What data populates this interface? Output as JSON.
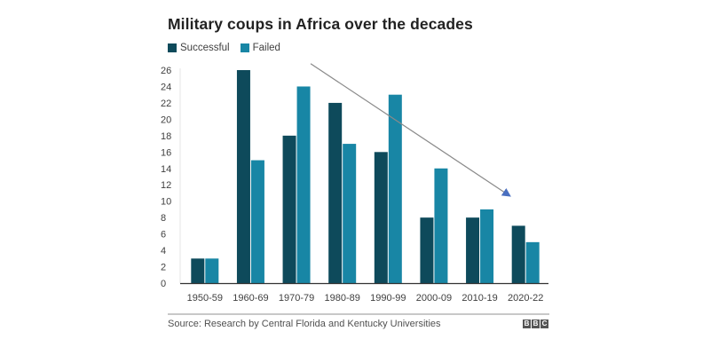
{
  "chart_data": {
    "type": "bar",
    "title": "Military coups in Africa over the decades",
    "xlabel": "",
    "ylabel": "",
    "categories": [
      "1950-59",
      "1960-69",
      "1970-79",
      "1980-89",
      "1990-99",
      "2000-09",
      "2010-19",
      "2020-22"
    ],
    "series": [
      {
        "name": "Successful",
        "color": "#0e4a5b",
        "values": [
          3,
          26,
          18,
          22,
          16,
          8,
          8,
          7
        ]
      },
      {
        "name": "Failed",
        "color": "#1886a5",
        "values": [
          3,
          15,
          24,
          17,
          23,
          14,
          9,
          5
        ]
      }
    ],
    "ylim": [
      0,
      26
    ],
    "yticks": [
      0,
      2,
      4,
      6,
      8,
      10,
      12,
      14,
      16,
      18,
      20,
      22,
      24,
      26
    ],
    "grid": false,
    "legend": "top-left",
    "annotations": [
      {
        "type": "arrow",
        "description": "downward trend arrow",
        "from": {
          "category": "1970-79",
          "value": 27
        },
        "to": {
          "category": "2010-19",
          "value": 11
        },
        "color": "#4a6fc0"
      }
    ],
    "source": "Source: Research by Central Florida and Kentucky Universities"
  },
  "branding": {
    "logo_letters": [
      "B",
      "B",
      "C"
    ]
  }
}
